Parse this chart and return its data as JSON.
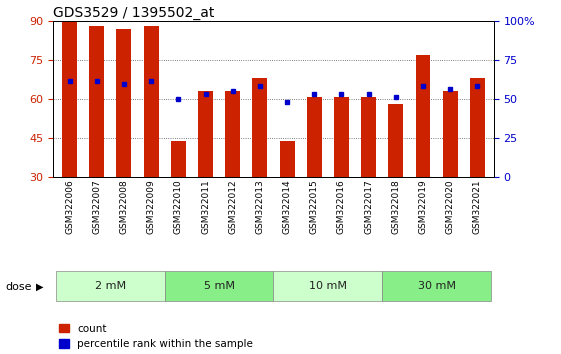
{
  "title": "GDS3529 / 1395502_at",
  "samples": [
    "GSM322006",
    "GSM322007",
    "GSM322008",
    "GSM322009",
    "GSM322010",
    "GSM322011",
    "GSM322012",
    "GSM322013",
    "GSM322014",
    "GSM322015",
    "GSM322016",
    "GSM322017",
    "GSM322018",
    "GSM322019",
    "GSM322020",
    "GSM322021"
  ],
  "red_values": [
    90,
    88,
    87,
    88,
    44,
    63,
    63,
    68,
    44,
    61,
    61,
    61,
    58,
    77,
    63,
    68
  ],
  "blue_values": [
    67,
    67,
    66,
    67,
    60,
    62,
    63,
    65,
    59,
    62,
    62,
    62,
    61,
    65,
    64,
    65
  ],
  "red_color": "#cc2200",
  "blue_color": "#0000cc",
  "ylim_left": [
    30,
    90
  ],
  "ylim_right": [
    0,
    100
  ],
  "yticks_left": [
    30,
    45,
    60,
    75,
    90
  ],
  "yticks_right": [
    0,
    25,
    50,
    75,
    100
  ],
  "ytick_right_labels": [
    "0",
    "25",
    "50",
    "75",
    "100%"
  ],
  "dose_groups": [
    {
      "label": "2 mM",
      "start": 0,
      "end": 4,
      "color": "#ccffcc"
    },
    {
      "label": "5 mM",
      "start": 4,
      "end": 8,
      "color": "#88ee88"
    },
    {
      "label": "10 mM",
      "start": 8,
      "end": 12,
      "color": "#ccffcc"
    },
    {
      "label": "30 mM",
      "start": 12,
      "end": 16,
      "color": "#88ee88"
    }
  ],
  "dose_label": "dose",
  "legend_count": "count",
  "legend_percentile": "percentile rank within the sample",
  "bar_width": 0.55,
  "background_color": "#ffffff",
  "plot_bg_color": "#ffffff",
  "tick_label_area_color": "#cccccc",
  "grid_color": "#000000",
  "title_fontsize": 10,
  "tick_fontsize": 6.5,
  "axis_left_color": "#cc2200",
  "axis_right_color": "#0000cc"
}
